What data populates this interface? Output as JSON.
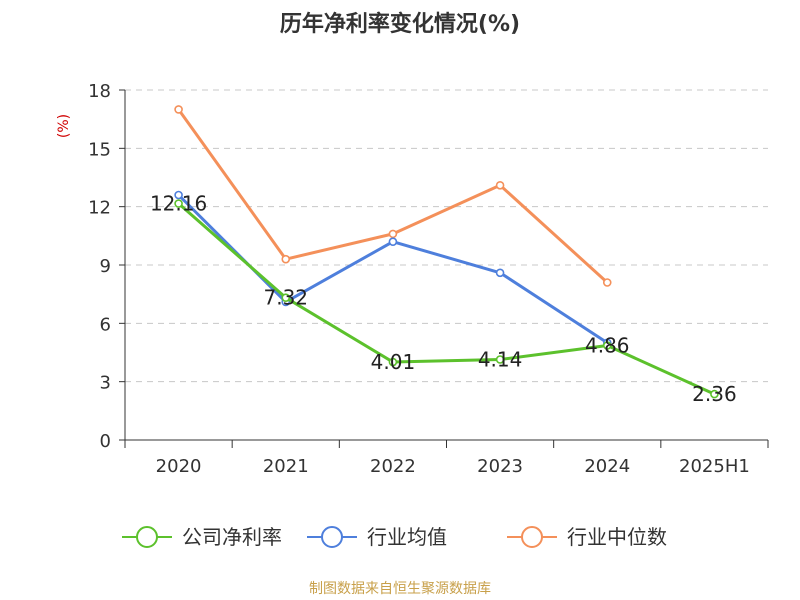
{
  "title": "历年净利率变化情况(%)",
  "source": "制图数据来自恒生聚源数据库",
  "chart_data": {
    "type": "line",
    "title": "历年净利率变化情况(%)",
    "ylabel": "(%)",
    "categories": [
      "2020",
      "2021",
      "2022",
      "2023",
      "2024",
      "2025H1"
    ],
    "ylim": [
      0,
      18
    ],
    "yticks": [
      0,
      3,
      6,
      9,
      12,
      15,
      18
    ],
    "grid": true,
    "legend_position": "bottom",
    "series": [
      {
        "name": "公司净利率",
        "color": "#5cc12c",
        "values": [
          12.16,
          7.32,
          4.01,
          4.14,
          4.86,
          2.36
        ],
        "labels": true
      },
      {
        "name": "行业均值",
        "color": "#4e7fdc",
        "values": [
          12.6,
          7.1,
          10.2,
          8.6,
          5.0,
          null
        ],
        "labels": false
      },
      {
        "name": "行业中位数",
        "color": "#f4905a",
        "values": [
          17.0,
          9.3,
          10.6,
          13.1,
          8.1,
          null
        ],
        "labels": false
      }
    ]
  }
}
